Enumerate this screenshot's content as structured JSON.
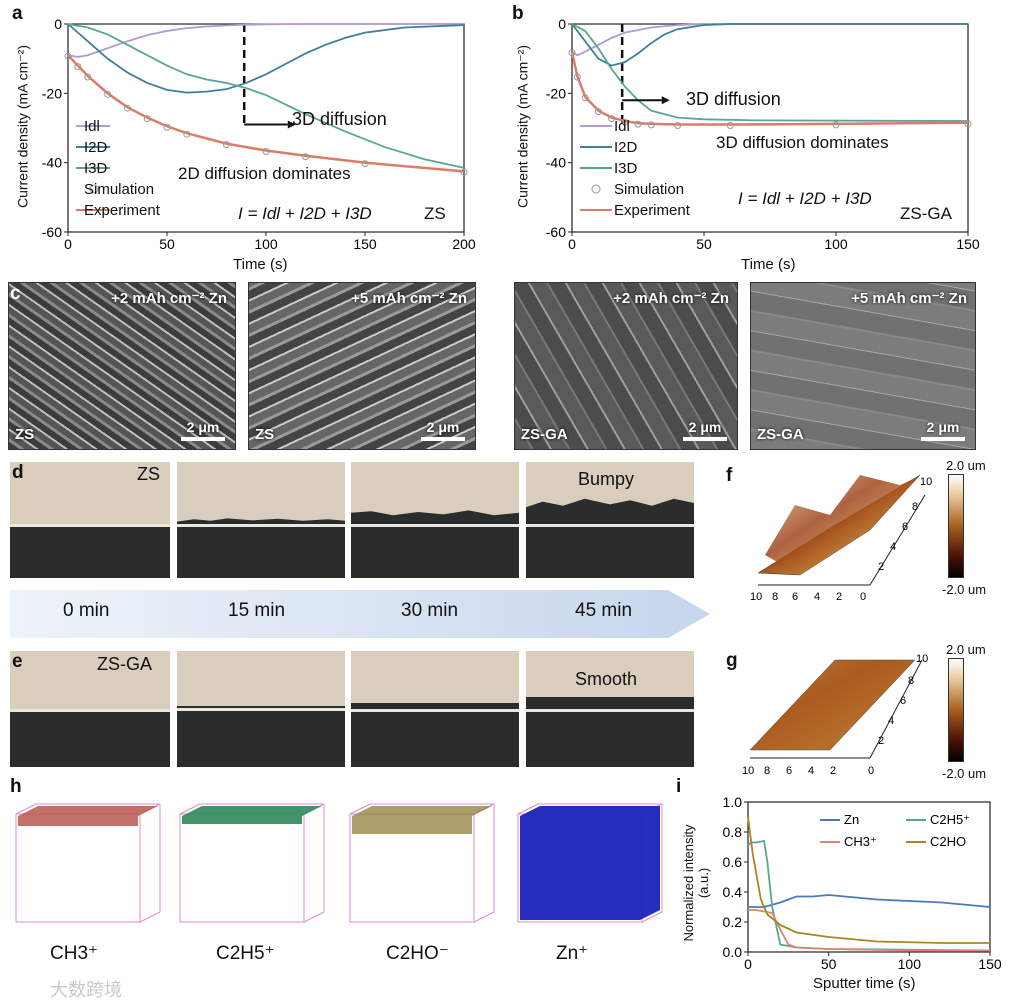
{
  "panels": {
    "a": {
      "letter": "a",
      "ylabel": "Current density (mA cm⁻²)",
      "xlabel": "Time (s)",
      "annotation_arrow": "3D diffusion",
      "annotation_dominant": "2D diffusion dominates",
      "equation": "I = Idl + I2D + I3D",
      "sample": "ZS",
      "legend": [
        "Idl",
        "I2D",
        "I3D",
        "Simulation",
        "Experiment"
      ]
    },
    "b": {
      "letter": "b",
      "ylabel": "Current density (mA cm⁻²)",
      "xlabel": "Time (s)",
      "annotation_arrow": "3D diffusion",
      "annotation_dominant": "3D diffusion dominates",
      "equation": "I = Idl + I2D + I3D",
      "sample": "ZS-GA",
      "legend": [
        "Idl",
        "I2D",
        "I3D",
        "Simulation",
        "Experiment"
      ]
    },
    "c": {
      "letter": "c",
      "images": [
        {
          "top": "+2 mAh cm⁻² Zn",
          "sample": "ZS",
          "scale": "2 μm"
        },
        {
          "top": "+5 mAh cm⁻² Zn",
          "sample": "ZS",
          "scale": "2 μm"
        },
        {
          "top": "+2 mAh cm⁻² Zn",
          "sample": "ZS-GA",
          "scale": "2 μm"
        },
        {
          "top": "+5 mAh cm⁻² Zn",
          "sample": "ZS-GA",
          "scale": "2 μm"
        }
      ]
    },
    "d": {
      "letter": "d",
      "sample": "ZS",
      "note": "Bumpy"
    },
    "e": {
      "letter": "e",
      "sample": "ZS-GA",
      "note": "Smooth"
    },
    "timeline": [
      "0 min",
      "15 min",
      "30 min",
      "45 min"
    ],
    "f": {
      "letter": "f",
      "cbar_max": "2.0 um",
      "cbar_min": "-2.0 um"
    },
    "g": {
      "letter": "g",
      "cbar_max": "2.0 um",
      "cbar_min": "-2.0 um"
    },
    "h": {
      "letter": "h",
      "labels": [
        "CH3⁺",
        "C2H5⁺",
        "C2HO⁻",
        "Zn⁺"
      ]
    },
    "i": {
      "letter": "i",
      "ylabel": "Normalized intensity (a.u.)",
      "xlabel": "Sputter time (s)"
    },
    "watermark": "大数跨境"
  },
  "colors": {
    "idl": "#b39bd0",
    "i2d": "#3f7f9a",
    "i3d": "#5aa596",
    "sim": "#999999",
    "exp": "#d97d6a",
    "zn": "#4a78c2",
    "c2h5": "#5aa596",
    "ch3": "#e0826f",
    "c2ho": "#a8871f"
  },
  "chart_data": [
    {
      "id": "a",
      "type": "line",
      "xlabel": "Time (s)",
      "ylabel": "Current density (mA cm⁻²)",
      "xlim": [
        0,
        200
      ],
      "ylim": [
        -60,
        0
      ],
      "xticks": [
        0,
        50,
        100,
        150,
        200
      ],
      "yticks": [
        0,
        -20,
        -40,
        -60
      ],
      "divider_x": 89,
      "series": [
        {
          "name": "Idl",
          "x": [
            0,
            5,
            10,
            15,
            20,
            30,
            40,
            50,
            60,
            70,
            80,
            90,
            100,
            120,
            150,
            200
          ],
          "y": [
            -9,
            -9.5,
            -9,
            -8,
            -7,
            -5,
            -3.2,
            -2,
            -1.2,
            -0.7,
            -0.4,
            -0.2,
            -0.1,
            0,
            0,
            0
          ]
        },
        {
          "name": "I2D",
          "x": [
            0,
            10,
            20,
            30,
            40,
            50,
            60,
            70,
            80,
            90,
            100,
            110,
            120,
            130,
            140,
            150,
            170,
            200
          ],
          "y": [
            0,
            -5,
            -10,
            -14,
            -17,
            -19,
            -19.8,
            -19.5,
            -18.8,
            -17,
            -14.5,
            -11.5,
            -8.5,
            -6,
            -4,
            -2.5,
            -1,
            -0.3
          ]
        },
        {
          "name": "I3D",
          "x": [
            0,
            10,
            20,
            30,
            40,
            50,
            60,
            70,
            80,
            90,
            100,
            120,
            140,
            160,
            180,
            200
          ],
          "y": [
            0,
            -1,
            -3,
            -6,
            -9,
            -12,
            -14.5,
            -16,
            -17,
            -18.5,
            -20.5,
            -26,
            -31,
            -35.5,
            -39,
            -41.5
          ]
        },
        {
          "name": "Experiment",
          "x": [
            0,
            5,
            10,
            20,
            30,
            40,
            50,
            60,
            80,
            100,
            120,
            150,
            200
          ],
          "y": [
            -9,
            -12,
            -15,
            -20,
            -24,
            -27,
            -29.5,
            -31.5,
            -34.5,
            -36.5,
            -38,
            -40,
            -42.5
          ]
        }
      ]
    },
    {
      "id": "b",
      "type": "line",
      "xlabel": "Time (s)",
      "ylabel": "Current density (mA cm⁻²)",
      "xlim": [
        0,
        150
      ],
      "ylim": [
        -60,
        0
      ],
      "xticks": [
        0,
        50,
        100,
        150
      ],
      "yticks": [
        0,
        -20,
        -40,
        -60
      ],
      "divider_x": 19,
      "series": [
        {
          "name": "Idl",
          "x": [
            0,
            2,
            5,
            10,
            15,
            20,
            30,
            40,
            50,
            150
          ],
          "y": [
            -8,
            -9,
            -8,
            -6,
            -4,
            -2.5,
            -1,
            -0.3,
            0,
            0
          ]
        },
        {
          "name": "I2D",
          "x": [
            0,
            5,
            10,
            15,
            20,
            25,
            30,
            35,
            40,
            50,
            60,
            150
          ],
          "y": [
            0,
            -5,
            -10,
            -12,
            -11,
            -8.5,
            -5.5,
            -3,
            -1.5,
            -0.3,
            0,
            0
          ]
        },
        {
          "name": "I3D",
          "x": [
            0,
            5,
            10,
            15,
            20,
            25,
            30,
            40,
            50,
            70,
            150
          ],
          "y": [
            0,
            -2,
            -7,
            -13,
            -18,
            -22,
            -25,
            -27,
            -27.5,
            -27.8,
            -28
          ]
        },
        {
          "name": "Experiment",
          "x": [
            0,
            2,
            5,
            10,
            15,
            20,
            25,
            30,
            40,
            60,
            100,
            150
          ],
          "y": [
            -8,
            -15,
            -21,
            -25,
            -27,
            -28,
            -28.6,
            -28.8,
            -29,
            -29,
            -28.8,
            -28.5
          ]
        }
      ]
    },
    {
      "id": "i",
      "type": "line",
      "xlabel": "Sputter time (s)",
      "ylabel": "Normalized intensity (a.u.)",
      "xlim": [
        0,
        150
      ],
      "ylim": [
        0,
        1.0
      ],
      "xticks": [
        0,
        50,
        100,
        150
      ],
      "yticks": [
        0.0,
        0.2,
        0.4,
        0.6,
        0.8,
        1.0
      ],
      "series": [
        {
          "name": "Zn",
          "x": [
            0,
            10,
            20,
            30,
            40,
            50,
            60,
            80,
            100,
            120,
            150
          ],
          "y": [
            0.3,
            0.3,
            0.33,
            0.37,
            0.37,
            0.38,
            0.37,
            0.35,
            0.34,
            0.33,
            0.3
          ]
        },
        {
          "name": "C2H5⁺",
          "x": [
            0,
            2,
            5,
            10,
            12,
            15,
            20,
            30,
            50,
            150
          ],
          "y": [
            0.71,
            0.73,
            0.73,
            0.74,
            0.6,
            0.3,
            0.05,
            0.03,
            0.02,
            0.01
          ]
        },
        {
          "name": "CH3⁺",
          "x": [
            0,
            5,
            10,
            15,
            20,
            25,
            30,
            50,
            100,
            150
          ],
          "y": [
            0.28,
            0.28,
            0.27,
            0.26,
            0.15,
            0.05,
            0.03,
            0.02,
            0.01,
            0.01
          ]
        },
        {
          "name": "C2HO",
          "x": [
            0,
            3,
            8,
            12,
            20,
            30,
            50,
            80,
            120,
            150
          ],
          "y": [
            0.9,
            0.65,
            0.35,
            0.25,
            0.18,
            0.13,
            0.1,
            0.07,
            0.06,
            0.06
          ]
        }
      ]
    }
  ]
}
